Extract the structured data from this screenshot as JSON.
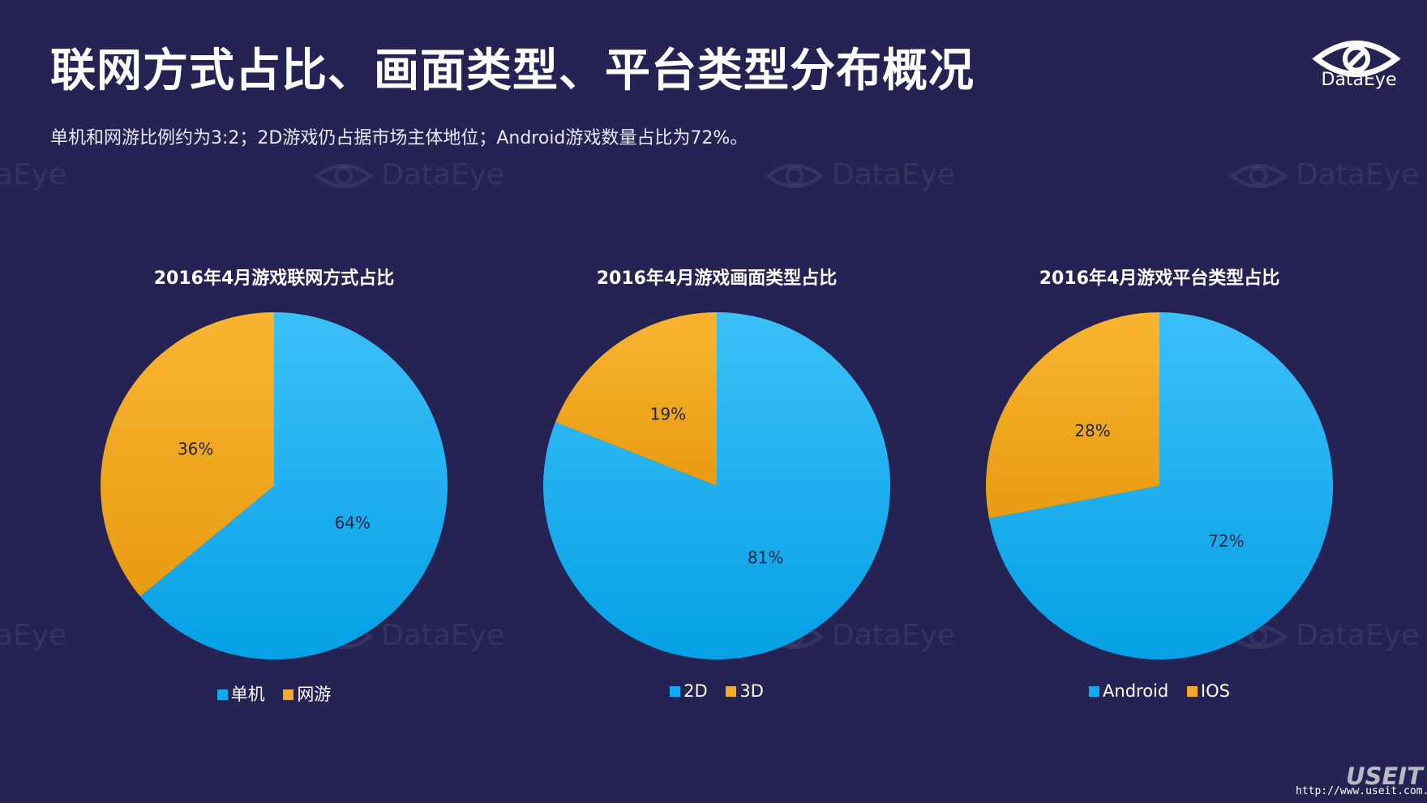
{
  "header": {
    "title": "联网方式占比、画面类型、平台类型分布概况",
    "subtitle": "单机和网游比例约为3:2；2D游戏仍占据市场主体地位；Android游戏数量占比为72%。"
  },
  "logo": {
    "text": "DataEye"
  },
  "watermark": {
    "text": "DataEye"
  },
  "footer": {
    "brand": "USEIT",
    "url": "http://www.useit.com.cn"
  },
  "colors": {
    "background": "#252254",
    "blue": "#10aaf0",
    "orange": "#f5a92a"
  },
  "chart_data": [
    {
      "type": "pie",
      "title": "2016年4月游戏联网方式占比",
      "categories": [
        "单机",
        "网游"
      ],
      "values": [
        64,
        36
      ],
      "labels": [
        "64%",
        "36%"
      ],
      "legend_position": "bottom"
    },
    {
      "type": "pie",
      "title": "2016年4月游戏画面类型占比",
      "categories": [
        "2D",
        "3D"
      ],
      "values": [
        81,
        19
      ],
      "labels": [
        "81%",
        "19%"
      ],
      "legend_position": "bottom"
    },
    {
      "type": "pie",
      "title": "2016年4月游戏平台类型占比",
      "categories": [
        "Android",
        "IOS"
      ],
      "values": [
        72,
        28
      ],
      "labels": [
        "72%",
        "28%"
      ],
      "legend_position": "bottom"
    }
  ]
}
